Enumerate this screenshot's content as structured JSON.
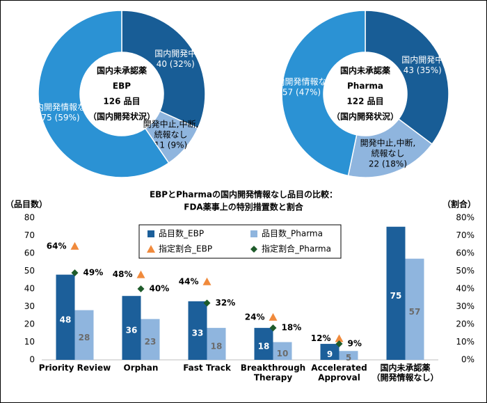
{
  "chart_data": [
    {
      "type": "pie",
      "center_text": [
        "国内未承認薬",
        "EBP",
        "126 品目",
        "（国内開発状況）"
      ],
      "categories": [
        [
          "国内開発中"
        ],
        [
          "開発中止,中断,",
          "続報なし"
        ],
        [
          "国内開発情報なし"
        ]
      ],
      "values": [
        40,
        11,
        75
      ],
      "value_labels": [
        "40 (32%)",
        "11 (9%)",
        "75 (59%)"
      ],
      "colors": [
        "#185d96",
        "#8fb5de",
        "#2b92d4"
      ]
    },
    {
      "type": "pie",
      "center_text": [
        "国内未承認薬",
        "Pharma",
        "122 品目",
        "（国内開発状況）"
      ],
      "categories": [
        [
          "国内開発中"
        ],
        [
          "開発中止,中断,",
          "続報なし"
        ],
        [
          "国内開発情報なし"
        ]
      ],
      "values": [
        43,
        22,
        57
      ],
      "value_labels": [
        "43 (35%)",
        "22 (18%)",
        "57 (47%)"
      ],
      "colors": [
        "#185d96",
        "#8fb5de",
        "#2b92d4"
      ]
    },
    {
      "type": "bar",
      "title": [
        "EBPとPharmaの国内開発情報なし品目の比較：",
        "FDA薬事上の特別措置数と割合"
      ],
      "y_label": "（品目数）",
      "y2_label": "（割合）",
      "categories": [
        [
          "Priority Review"
        ],
        [
          "Orphan"
        ],
        [
          "Fast Track"
        ],
        [
          "Breakthrough",
          "Therapy"
        ],
        [
          "Accelerated",
          "Approval"
        ],
        [
          "国内未承認薬",
          "（開発情報なし）"
        ]
      ],
      "series": [
        {
          "name": "品目数_EBP",
          "color": "#1c5f9a",
          "marker": "bar",
          "values": [
            48,
            36,
            33,
            18,
            9,
            75
          ]
        },
        {
          "name": "品目数_Pharma",
          "color": "#8fb5de",
          "marker": "bar",
          "values": [
            28,
            23,
            18,
            10,
            5,
            57
          ]
        },
        {
          "name": "指定割合_EBP",
          "color": "#f08a3c",
          "marker": "triangle",
          "axis": "y2",
          "values": [
            64,
            48,
            44,
            24,
            12,
            null
          ],
          "value_labels": [
            "64%",
            "48%",
            "44%",
            "24%",
            "12%",
            null
          ]
        },
        {
          "name": "指定割合_Pharma",
          "color": "#1e5b2a",
          "marker": "diamond",
          "axis": "y2",
          "values": [
            49,
            40,
            32,
            18,
            9,
            null
          ],
          "value_labels": [
            "49%",
            "40%",
            "32%",
            "18%",
            "9%",
            null
          ]
        }
      ],
      "ylim": [
        0,
        80
      ],
      "yticks": [
        0,
        10,
        20,
        30,
        40,
        50,
        60,
        70,
        80
      ],
      "y2lim": [
        0,
        80
      ],
      "y2ticks": [
        {
          "value": 0,
          "label": "0%"
        },
        {
          "value": 10,
          "label": "10%"
        },
        {
          "value": 20,
          "label": "20%"
        },
        {
          "value": 30,
          "label": "30%"
        },
        {
          "value": 40,
          "label": "40%"
        },
        {
          "value": 50,
          "label": "50%"
        },
        {
          "value": 60,
          "label": "60%"
        },
        {
          "value": 70,
          "label": "70%"
        },
        {
          "value": 80,
          "label": "80%"
        }
      ],
      "legend": "top"
    }
  ]
}
